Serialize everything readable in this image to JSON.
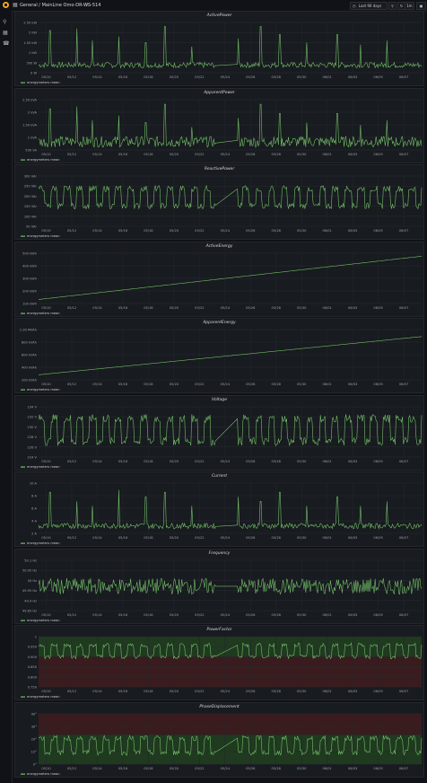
{
  "header": {
    "breadcrumb": "General / MainLine Omo-DR-WS-514",
    "time_range": "Last 90 days",
    "refresh": "1m"
  },
  "icons": {
    "logo": "grafana-logo-icon",
    "dashboards": "grid-icon",
    "share": "share-icon",
    "search": "search-icon",
    "sidebar_dashboards": "dashboards-icon",
    "alerts": "bell-icon",
    "clock": "clock-icon",
    "zoom_out": "zoom-out-icon",
    "refresh": "refresh-icon",
    "tv": "tv-mode-icon"
  },
  "colors": {
    "series": "#73bf69",
    "background": "#111217",
    "panel": "#181b1f",
    "threshold_green": "#1f3a1f",
    "threshold_red": "#3a1b1e"
  },
  "x_ticks": [
    "05/10",
    "05/12",
    "05/14",
    "05/16",
    "05/18",
    "05/20",
    "05/22",
    "05/24",
    "05/26",
    "05/28",
    "05/30",
    "06/01",
    "06/03",
    "06/05",
    "06/07"
  ],
  "chart_data": [
    {
      "type": "line",
      "title": "ActivePower",
      "legend": [
        "energymeters mean"
      ],
      "y_ticks": [
        "2.50 kW",
        "2 kW",
        "1.50 kW",
        "1 kW",
        "500 W",
        "0 W"
      ],
      "ylim": [
        0,
        2500
      ],
      "baseline": 350,
      "spikes": [
        [
          0.03,
          2100
        ],
        [
          0.1,
          2200
        ],
        [
          0.14,
          1600
        ],
        [
          0.21,
          1800
        ],
        [
          0.28,
          1500
        ],
        [
          0.33,
          2300
        ],
        [
          0.4,
          1300
        ],
        [
          0.47,
          2200
        ],
        [
          0.52,
          1700
        ],
        [
          0.58,
          2300
        ],
        [
          0.63,
          1900
        ],
        [
          0.7,
          1500
        ],
        [
          0.78,
          1900
        ],
        [
          0.84,
          1400
        ],
        [
          0.91,
          1600
        ]
      ],
      "gap": [
        0.46,
        0.52
      ]
    },
    {
      "title": "ApparentPower",
      "type": "line",
      "legend": [
        "energymeters mean"
      ],
      "y_ticks": [
        "2.50 kVA",
        "2 kVA",
        "1.50 kVA",
        "1 kVA",
        "500 VA"
      ],
      "ylim": [
        300,
        2500
      ],
      "baseline": 600,
      "spikes": [
        [
          0.03,
          2100
        ],
        [
          0.1,
          2200
        ],
        [
          0.14,
          1600
        ],
        [
          0.21,
          1800
        ],
        [
          0.28,
          1500
        ],
        [
          0.33,
          2300
        ],
        [
          0.4,
          1300
        ],
        [
          0.47,
          2200
        ],
        [
          0.52,
          1700
        ],
        [
          0.58,
          2300
        ],
        [
          0.63,
          1900
        ],
        [
          0.7,
          1500
        ],
        [
          0.78,
          1900
        ],
        [
          0.84,
          1400
        ],
        [
          0.91,
          1600
        ]
      ],
      "gap": [
        0.46,
        0.52
      ]
    },
    {
      "title": "ReactivePower",
      "type": "line",
      "legend": [
        "energymeters mean"
      ],
      "y_ticks": [
        "300 VAr",
        "250 VAr",
        "200 VAr",
        "150 VAr",
        "100 VAr",
        "50 VAr"
      ],
      "ylim": [
        0,
        320
      ],
      "square": [
        130,
        240
      ],
      "gap": [
        0.46,
        0.52
      ]
    },
    {
      "title": "ActiveEnergy",
      "type": "line",
      "legend": [
        "energymeters mean"
      ],
      "y_ticks": [
        "500 kWh",
        "400 kWh",
        "300 kWh",
        "200 kWh",
        "100 kWh"
      ],
      "ylim": [
        50,
        550
      ],
      "range": [
        90,
        520
      ]
    },
    {
      "title": "ApparentEnergy",
      "type": "line",
      "legend": [
        "energymeters mean"
      ],
      "y_ticks": [
        "1.00 MVAh",
        "800 kVAh",
        "600 kVAh",
        "400 kVAh",
        "200 kVAh"
      ],
      "ylim": [
        100,
        1100
      ],
      "range": [
        200,
        960
      ]
    },
    {
      "title": "Voltage",
      "type": "line",
      "legend": [
        "energymeters mean"
      ],
      "y_ticks": [
        "234 V",
        "232 V",
        "230 V",
        "228 V",
        "226 V",
        "224 V"
      ],
      "ylim": [
        222,
        235
      ],
      "square": [
        226,
        232
      ],
      "gap": [
        0.46,
        0.52
      ]
    },
    {
      "title": "Current",
      "type": "line",
      "legend": [
        "energymeters mean"
      ],
      "y_ticks": [
        "10 A",
        "8 A",
        "6 A",
        "4 A",
        "2 A"
      ],
      "ylim": [
        0,
        11
      ],
      "baseline": 1.5,
      "spikes": [
        [
          0.03,
          9
        ],
        [
          0.1,
          7
        ],
        [
          0.14,
          6
        ],
        [
          0.21,
          9.5
        ],
        [
          0.28,
          8
        ],
        [
          0.33,
          9
        ],
        [
          0.4,
          6
        ],
        [
          0.47,
          5
        ],
        [
          0.52,
          8
        ],
        [
          0.58,
          7
        ],
        [
          0.63,
          9
        ],
        [
          0.7,
          6
        ],
        [
          0.78,
          8
        ],
        [
          0.84,
          6
        ],
        [
          0.91,
          7
        ]
      ],
      "gap": [
        0.46,
        0.52
      ]
    },
    {
      "title": "Frequency",
      "type": "line",
      "legend": [
        "energymeters mean"
      ],
      "y_ticks": [
        "50.1 Hz",
        "50.05 Hz",
        "50 Hz",
        "49.95 Hz",
        "49.9 Hz",
        "49.85 Hz"
      ],
      "ylim": [
        49.82,
        50.13
      ],
      "noise": [
        49.97,
        0.05
      ],
      "gap": [
        0.46,
        0.52
      ]
    },
    {
      "title": "PowerFactor",
      "type": "line",
      "legend": [
        "energymeters mean"
      ],
      "y_ticks": [
        "1",
        "0.950",
        "0.900",
        "0.850",
        "0.800",
        "0.750"
      ],
      "ylim": [
        0.72,
        1.02
      ],
      "square": [
        0.9,
        0.97
      ],
      "zones": "pf",
      "gap": [
        0.46,
        0.52
      ]
    },
    {
      "title": "PhaseDisplacement",
      "type": "line",
      "legend": [
        "energymeters mean"
      ],
      "y_ticks": [
        "40°",
        "30°",
        "20°",
        "10°",
        "0°"
      ],
      "ylim": [
        -3,
        45
      ],
      "square": [
        8,
        22
      ],
      "zones": "pd",
      "gap": [
        0.46,
        0.52
      ]
    }
  ]
}
